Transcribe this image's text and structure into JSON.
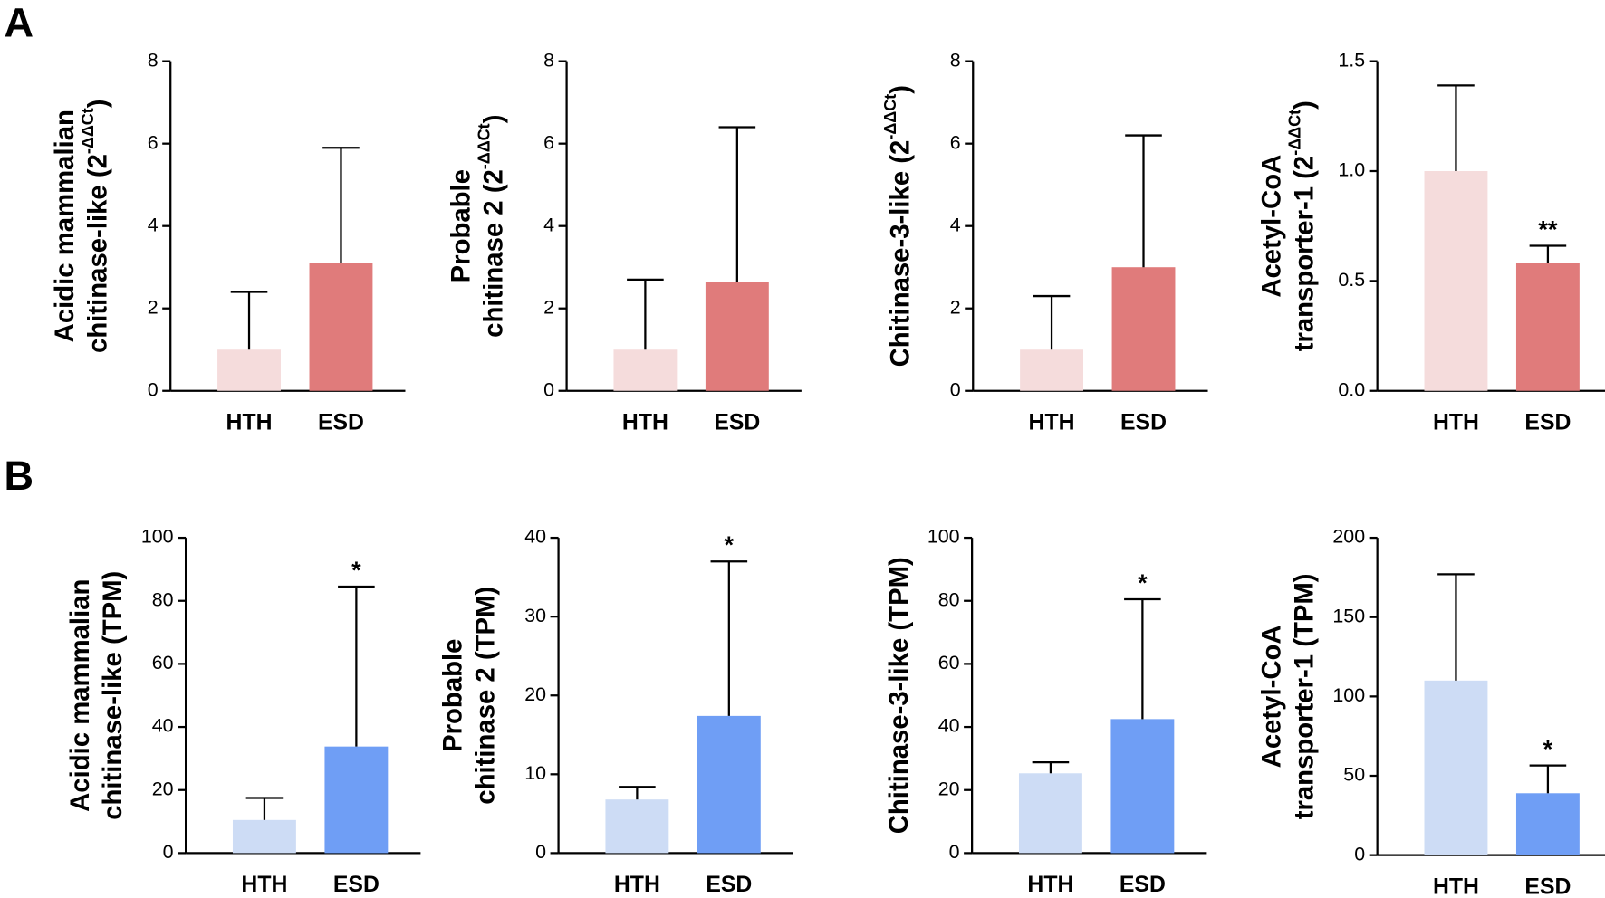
{
  "panel_labels": [
    "A",
    "B"
  ],
  "chart_data": [
    {
      "type": "bar",
      "ylabel": [
        "Acidic mammalian",
        "chitinase-like (2"
      ],
      "ylabel_sup": "-ΔΔCt",
      "ylabel_close": ")",
      "categories": [
        "HTH",
        "ESD"
      ],
      "values": [
        1,
        3.1
      ],
      "errors": [
        1.4,
        2.8
      ],
      "annotations": [
        null,
        null
      ],
      "colors": [
        "#f5dcdc",
        "#e07b7b"
      ],
      "ylim": [
        0,
        8
      ],
      "yticks": [
        0,
        2,
        4,
        6,
        8
      ]
    },
    {
      "type": "bar",
      "ylabel": [
        "Probable",
        "chitinase 2 (2"
      ],
      "ylabel_sup": "-ΔΔCt",
      "ylabel_close": ")",
      "categories": [
        "HTH",
        "ESD"
      ],
      "values": [
        1,
        2.65
      ],
      "errors": [
        1.7,
        3.75
      ],
      "annotations": [
        null,
        null
      ],
      "colors": [
        "#f5dcdc",
        "#e07b7b"
      ],
      "ylim": [
        0,
        8
      ],
      "yticks": [
        0,
        2,
        4,
        6,
        8
      ]
    },
    {
      "type": "bar",
      "ylabel": [
        "Chitinase-3-like (2"
      ],
      "ylabel_sup": "-ΔΔCt",
      "ylabel_close": ")",
      "categories": [
        "HTH",
        "ESD"
      ],
      "values": [
        1,
        3.0
      ],
      "errors": [
        1.3,
        3.2
      ],
      "annotations": [
        null,
        null
      ],
      "colors": [
        "#f5dcdc",
        "#e07b7b"
      ],
      "ylim": [
        0,
        8
      ],
      "yticks": [
        0,
        2,
        4,
        6,
        8
      ]
    },
    {
      "type": "bar",
      "ylabel": [
        "Acetyl-CoA",
        "transporter-1 (2"
      ],
      "ylabel_sup": "-ΔΔCt",
      "ylabel_close": ")",
      "categories": [
        "HTH",
        "ESD"
      ],
      "values": [
        1.0,
        0.58
      ],
      "errors": [
        0.39,
        0.08
      ],
      "annotations": [
        null,
        "**"
      ],
      "colors": [
        "#f5dcdc",
        "#e07b7b"
      ],
      "ylim": [
        0,
        1.5
      ],
      "yticks": [
        {
          "value": 0,
          "label": "0.0"
        },
        0.5,
        {
          "value": 1,
          "label": "1.0"
        },
        1.5
      ]
    },
    {
      "type": "bar",
      "ylabel": [
        "Acidic mammalian",
        "chitinase-like (TPM)"
      ],
      "categories": [
        "HTH",
        "ESD"
      ],
      "values": [
        10.5,
        33.8
      ],
      "errors": [
        7,
        50.7
      ],
      "annotations": [
        null,
        "*"
      ],
      "colors": [
        "#cddcf5",
        "#6f9ef5"
      ],
      "ylim": [
        0,
        100
      ],
      "yticks": [
        0,
        20,
        40,
        60,
        80,
        100
      ]
    },
    {
      "type": "bar",
      "ylabel": [
        "Probable",
        "chitinase 2 (TPM)"
      ],
      "categories": [
        "HTH",
        "ESD"
      ],
      "values": [
        6.8,
        17.4
      ],
      "errors": [
        1.6,
        19.6
      ],
      "annotations": [
        null,
        "*"
      ],
      "colors": [
        "#cddcf5",
        "#6f9ef5"
      ],
      "ylim": [
        0,
        40
      ],
      "yticks": [
        0,
        10,
        20,
        30,
        40
      ]
    },
    {
      "type": "bar",
      "ylabel": [
        "Chitinase-3-like (TPM)"
      ],
      "categories": [
        "HTH",
        "ESD"
      ],
      "values": [
        25.3,
        42.5
      ],
      "errors": [
        3.5,
        38
      ],
      "annotations": [
        null,
        "*"
      ],
      "colors": [
        "#cddcf5",
        "#6f9ef5"
      ],
      "ylim": [
        0,
        100
      ],
      "yticks": [
        0,
        20,
        40,
        60,
        80,
        100
      ]
    },
    {
      "type": "bar",
      "ylabel": [
        "Acetyl-CoA",
        "transporter-1 (TPM)"
      ],
      "categories": [
        "HTH",
        "ESD"
      ],
      "values": [
        110,
        39
      ],
      "errors": [
        67,
        17.5
      ],
      "annotations": [
        null,
        "*"
      ],
      "colors": [
        "#cddcf5",
        "#6f9ef5"
      ],
      "ylim": [
        0,
        200
      ],
      "yticks": [
        0,
        50,
        100,
        150,
        200
      ]
    }
  ]
}
